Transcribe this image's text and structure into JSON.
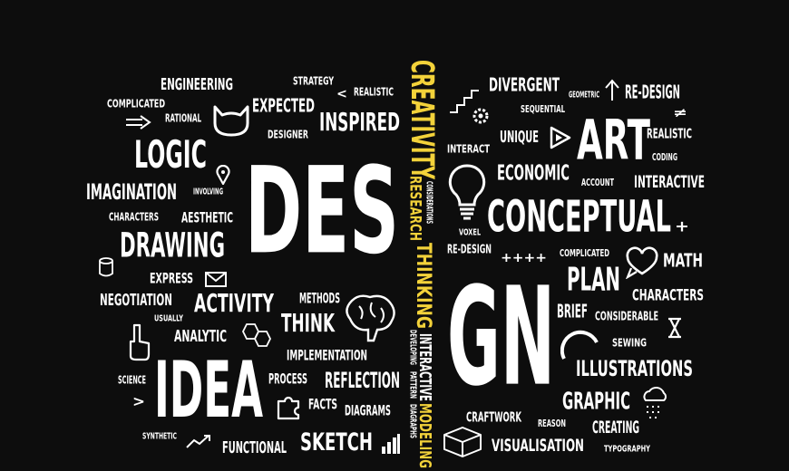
{
  "colors": {
    "background": "#0d0d0d",
    "text": "#ffffff",
    "accent": "#f3d23a"
  },
  "words": {
    "des": "DES",
    "gn": "GN",
    "idea": "IDEA",
    "art": "ART",
    "conceptual": "CONCEPTUAL",
    "logic": "LOGIC",
    "drawing": "DRAWING",
    "imagination": "IMAGINATION",
    "engineering": "ENGINEERING",
    "strategy": "STRATEGY",
    "realistic_top": "REALISTIC",
    "complicated_left": "COMPLICATED",
    "expected": "EXPECTED",
    "rational": "RATIONAL",
    "inspired": "INSPIRED",
    "designer": "DESIGNER",
    "involving": "INVOLVING",
    "characters_left": "CHARACTERS",
    "aesthetic": "AESTHETIC",
    "express": "EXPRESS",
    "negotiation": "NEGOTIATION",
    "activity": "ACTIVITY",
    "methods": "METHODS",
    "usually": "USUALLY",
    "think": "THINK",
    "analytic": "ANALYTIC",
    "implementation": "IMPLEMENTATION",
    "science": "SCIENCE",
    "process": "PROCESS",
    "reflection": "REFLECTION",
    "facts": "FACTS",
    "diagrams": "DIAGRAMS",
    "synthetic": "SYNTHETIC",
    "functional": "FUNCTIONAL",
    "sketch": "SKETCH",
    "creativity": "CREATIVITY",
    "considerations": "CONSIDERATIONS",
    "research": "RESEARCH",
    "thinking": "THINKING",
    "developing": "DEVELOPING",
    "pattern": "PATTERN",
    "interactive_vertical": "INTERACTIVE",
    "modeling": "MODELING",
    "diagraphs": "DIAGRAPHS",
    "divergent": "DIVERGENT",
    "geometric": "GEOMETRIC",
    "redesign_top": "RE-DESIGN",
    "sequential": "SEQUENTIAL",
    "unique": "UNIQUE",
    "interact": "INTERACT",
    "realistic_right": "REALISTIC",
    "coding": "CODING",
    "economic": "ECONOMIC",
    "account": "ACCOUNT",
    "interactive_right": "INTERACTIVE",
    "voxel": "VOXEL",
    "redesign_mid": "RE-DESIGN",
    "plus_row": "++++",
    "complicated_right": "COMPLICATED",
    "math": "MATH",
    "plan": "PLAN",
    "characters_right": "CHARACTERS",
    "brief": "BRIEF",
    "considerable": "CONSIDERABLE",
    "sewing": "SEWING",
    "illustrations": "ILLUSTRATIONS",
    "graphic": "GRAPHIC",
    "craftwork": "CRAFTWORK",
    "reason": "REASON",
    "creating": "CREATING",
    "visualisation": "VISUALISATION",
    "typography": "TYPOGRAPHY",
    "plus": "+",
    "notequal": "≠",
    "gt": ">",
    "lt": "<"
  },
  "icons": [
    "cat-icon",
    "arrow-right-icon",
    "location-pin-icon",
    "database-icon",
    "envelope-icon",
    "hexagons-icon",
    "brain-icon",
    "hand-pointing-icon",
    "puzzle-icon",
    "line-chart-icon",
    "bar-chart-icon",
    "stairs-icon",
    "gears-icon",
    "lightbulb-icon",
    "play-triangle-icon",
    "up-arrow-icon",
    "heart-speech-icon",
    "hourglass-icon",
    "arc-icon",
    "cloud-icon",
    "box-icon"
  ]
}
